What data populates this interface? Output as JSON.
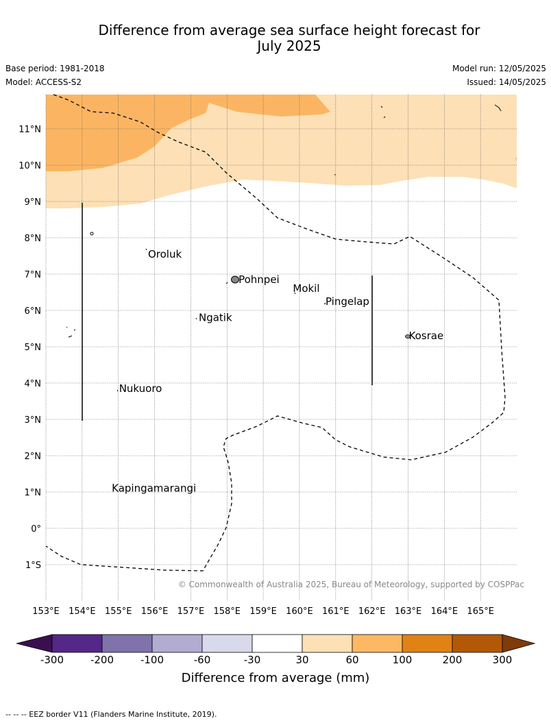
{
  "title_line1": "Difference from average sea surface height forecast for",
  "title_line2": "July 2025",
  "meta": {
    "base_period": "Base period: 1981-2018",
    "model": "Model: ACCESS-S2",
    "model_run": "Model run: 12/05/2025",
    "issued": "Issued: 14/05/2025"
  },
  "map": {
    "lon_range": [
      153,
      166
    ],
    "lat_range": [
      -2,
      12
    ],
    "lat_ticks": [
      {
        "value": 11,
        "label": "11°N"
      },
      {
        "value": 10,
        "label": "10°N"
      },
      {
        "value": 9,
        "label": "9°N"
      },
      {
        "value": 8,
        "label": "8°N"
      },
      {
        "value": 7,
        "label": "7°N"
      },
      {
        "value": 6,
        "label": "6°N"
      },
      {
        "value": 5,
        "label": "5°N"
      },
      {
        "value": 4,
        "label": "4°N"
      },
      {
        "value": 3,
        "label": "3°N"
      },
      {
        "value": 2,
        "label": "2°N"
      },
      {
        "value": 1,
        "label": "1°N"
      },
      {
        "value": 0,
        "label": "0°"
      },
      {
        "value": -1,
        "label": "1°S"
      }
    ],
    "lon_ticks": [
      {
        "value": 153,
        "label": "153°E"
      },
      {
        "value": 154,
        "label": "154°E"
      },
      {
        "value": 155,
        "label": "155°E"
      },
      {
        "value": 156,
        "label": "156°E"
      },
      {
        "value": 157,
        "label": "157°E"
      },
      {
        "value": 158,
        "label": "158°E"
      },
      {
        "value": 159,
        "label": "159°E"
      },
      {
        "value": 160,
        "label": "160°E"
      },
      {
        "value": 161,
        "label": "161°E"
      },
      {
        "value": 162,
        "label": "162°E"
      },
      {
        "value": 163,
        "label": "163°E"
      },
      {
        "value": 164,
        "label": "164°E"
      },
      {
        "value": 165,
        "label": "165°E"
      }
    ],
    "places": [
      {
        "name": "Oroluk",
        "lon": 155.8,
        "lat": 7.55
      },
      {
        "name": "Pohnpei",
        "lon": 158.3,
        "lat": 6.85
      },
      {
        "name": "Mokil",
        "lon": 159.8,
        "lat": 6.6
      },
      {
        "name": "Pingelap",
        "lon": 160.7,
        "lat": 6.25
      },
      {
        "name": "Ngatik",
        "lon": 157.2,
        "lat": 5.8
      },
      {
        "name": "Kosrae",
        "lon": 163.0,
        "lat": 5.3
      },
      {
        "name": "Nukuoro",
        "lon": 155.0,
        "lat": 3.85
      },
      {
        "name": "Kapingamarangi",
        "lon": 154.8,
        "lat": 1.1
      }
    ],
    "fill_colors": {
      "band_30_60": "#fde0b6",
      "band_60_100": "#fbb562"
    },
    "copyright": "© Commonwealth of Australia 2025, Bureau of Meteorology, supported by COSPPac"
  },
  "colorbar": {
    "title": "Difference from average (mm)",
    "colors": [
      "#3b0f4f",
      "#542788",
      "#8073ac",
      "#b2abd2",
      "#d8daeb",
      "#ffffff",
      "#fee0b6",
      "#fdb863",
      "#e08214",
      "#b35806",
      "#7f3b08"
    ],
    "labels": [
      "-300",
      "-200",
      "-100",
      "-60",
      "-30",
      "30",
      "60",
      "100",
      "200",
      "300"
    ]
  },
  "footnote": "-- --  -- EEZ border V11 (Flanders Marine Institute, 2019)."
}
